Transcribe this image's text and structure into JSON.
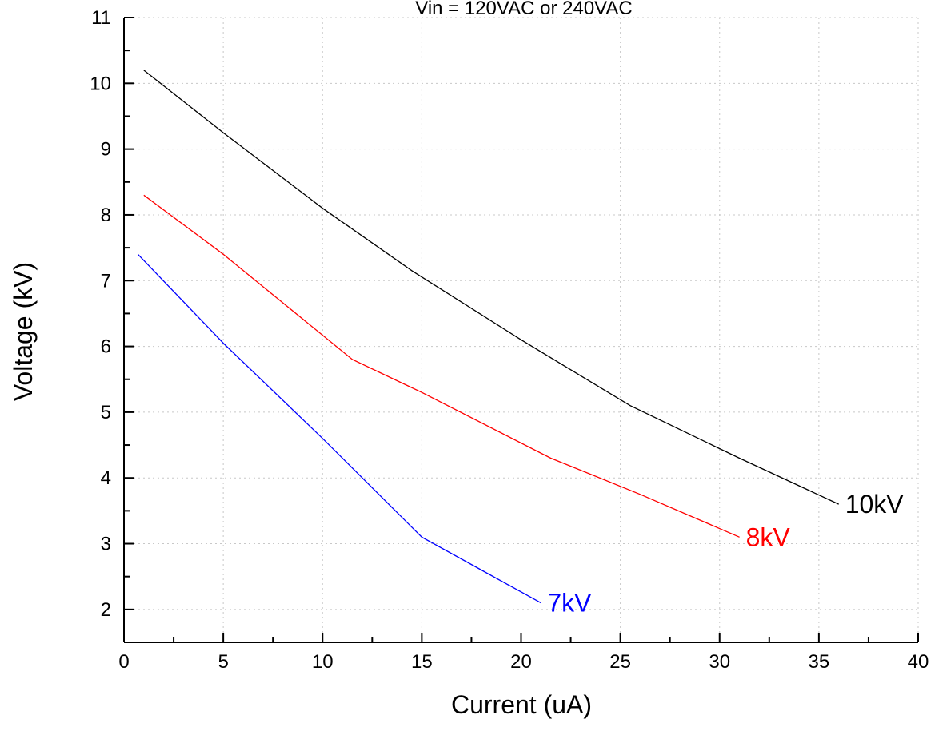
{
  "chart_data": {
    "type": "line",
    "title": "Vin = 120VAC or 240VAC",
    "xlabel": "Current (uA)",
    "ylabel": "Voltage (kV)",
    "xlim": [
      0,
      40
    ],
    "ylim": [
      1.5,
      11
    ],
    "x_ticks": [
      0,
      5,
      10,
      15,
      20,
      25,
      30,
      35,
      40
    ],
    "y_ticks": [
      2,
      3,
      4,
      5,
      6,
      7,
      8,
      9,
      10,
      11
    ],
    "grid": true,
    "series": [
      {
        "name": "10kV",
        "color": "#000000",
        "x": [
          1,
          5,
          10,
          14.5,
          20,
          25.5,
          31,
          36
        ],
        "y": [
          10.2,
          9.25,
          8.1,
          7.15,
          6.1,
          5.1,
          4.3,
          3.6
        ]
      },
      {
        "name": "8kV",
        "color": "#ff0000",
        "x": [
          1,
          5,
          11.5,
          15,
          21.5,
          26,
          31
        ],
        "y": [
          8.3,
          7.4,
          5.8,
          5.3,
          4.3,
          3.75,
          3.1
        ]
      },
      {
        "name": "7kV",
        "color": "#0000ff",
        "x": [
          0.7,
          5,
          10,
          15,
          18,
          21
        ],
        "y": [
          7.4,
          6.05,
          4.6,
          3.1,
          2.6,
          2.1
        ]
      }
    ]
  }
}
